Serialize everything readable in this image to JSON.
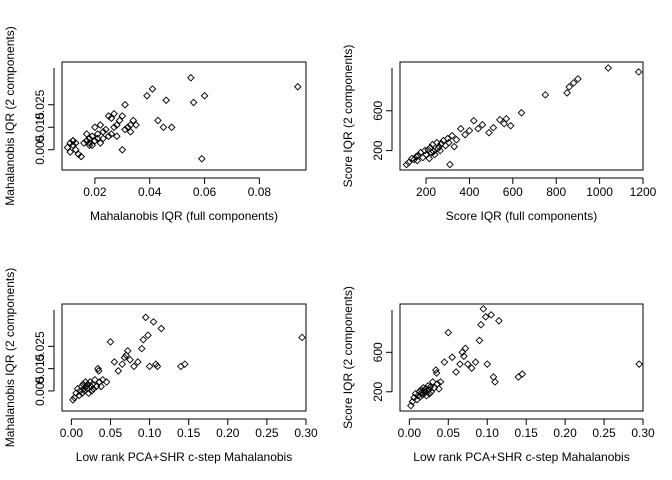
{
  "chart_data": [
    {
      "type": "scatter",
      "xlabel": "Mahalanobis IQR (full components)",
      "ylabel": "Mahalanobis IQR (2 components)",
      "xlim": [
        0.008,
        0.097
      ],
      "ylim": [
        -0.004,
        0.044
      ],
      "xticks": [
        0.02,
        0.04,
        0.06,
        0.08
      ],
      "yticks": [
        0.005,
        0.015,
        0.025
      ],
      "xtick_labels": [
        "0.02",
        "0.04",
        "0.06",
        "0.08"
      ],
      "ytick_labels": [
        "0.005",
        "0.015",
        "0.025"
      ],
      "marker": "open-diamond",
      "x": [
        0.01,
        0.011,
        0.011,
        0.012,
        0.012,
        0.012,
        0.013,
        0.013,
        0.014,
        0.015,
        0.016,
        0.017,
        0.017,
        0.018,
        0.018,
        0.018,
        0.019,
        0.019,
        0.02,
        0.02,
        0.021,
        0.021,
        0.022,
        0.022,
        0.023,
        0.023,
        0.024,
        0.025,
        0.025,
        0.026,
        0.026,
        0.027,
        0.027,
        0.028,
        0.028,
        0.029,
        0.03,
        0.03,
        0.031,
        0.031,
        0.032,
        0.033,
        0.033,
        0.034,
        0.035,
        0.039,
        0.041,
        0.043,
        0.045,
        0.046,
        0.048,
        0.055,
        0.056,
        0.059,
        0.06,
        0.094
      ],
      "y": [
        0.006,
        0.004,
        0.008,
        0.009,
        0.007,
        0.009,
        0.005,
        0.008,
        0.003,
        0.002,
        0.008,
        0.009,
        0.012,
        0.007,
        0.01,
        0.008,
        0.011,
        0.007,
        0.009,
        0.015,
        0.01,
        0.012,
        0.016,
        0.008,
        0.01,
        0.013,
        0.014,
        0.011,
        0.02,
        0.012,
        0.019,
        0.015,
        0.021,
        0.011,
        0.016,
        0.018,
        0.02,
        0.005,
        0.014,
        0.025,
        0.015,
        0.013,
        0.016,
        0.018,
        0.016,
        0.029,
        0.032,
        0.018,
        0.015,
        0.027,
        0.015,
        0.037,
        0.026,
        0.001,
        0.029,
        0.033
      ]
    },
    {
      "type": "scatter",
      "xlabel": "Score IQR (full components)",
      "ylabel": "Score IQR (2 components)",
      "xlim": [
        80,
        1200
      ],
      "ylim": [
        5,
        1090
      ],
      "xticks": [
        200,
        400,
        600,
        800,
        1000,
        1200
      ],
      "yticks": [
        200,
        600
      ],
      "xtick_labels": [
        "200",
        "400",
        "600",
        "800",
        "1000",
        "1200"
      ],
      "ytick_labels": [
        "200",
        "600"
      ],
      "marker": "open-diamond",
      "x": [
        110,
        120,
        135,
        145,
        155,
        160,
        165,
        175,
        185,
        195,
        200,
        210,
        215,
        220,
        225,
        230,
        235,
        240,
        250,
        255,
        260,
        265,
        270,
        280,
        290,
        300,
        305,
        310,
        320,
        330,
        340,
        360,
        380,
        400,
        420,
        440,
        460,
        490,
        510,
        540,
        560,
        570,
        590,
        640,
        750,
        850,
        860,
        880,
        900,
        1040,
        1180
      ],
      "y": [
        60,
        80,
        120,
        110,
        140,
        100,
        150,
        180,
        130,
        200,
        160,
        210,
        120,
        230,
        180,
        260,
        190,
        160,
        280,
        220,
        240,
        200,
        270,
        300,
        250,
        320,
        280,
        60,
        350,
        240,
        310,
        420,
        360,
        400,
        500,
        420,
        460,
        380,
        430,
        510,
        470,
        520,
        450,
        580,
        760,
        780,
        840,
        880,
        920,
        1030,
        990
      ]
    },
    {
      "type": "scatter",
      "xlabel": "Low rank PCA+SHR c-step Mahalanobis",
      "ylabel": "Mahalanobis IQR (2 components)",
      "xlim": [
        -0.012,
        0.3
      ],
      "ylim": [
        -0.004,
        0.044
      ],
      "xticks": [
        0.0,
        0.05,
        0.1,
        0.15,
        0.2,
        0.25,
        0.3
      ],
      "yticks": [
        0.005,
        0.015,
        0.025
      ],
      "xtick_labels": [
        "0.00",
        "0.05",
        "0.10",
        "0.15",
        "0.20",
        "0.25",
        "0.30"
      ],
      "ytick_labels": [
        "0.005",
        "0.015",
        "0.025"
      ],
      "marker": "open-diamond",
      "x": [
        0.002,
        0.004,
        0.006,
        0.008,
        0.01,
        0.011,
        0.013,
        0.014,
        0.015,
        0.016,
        0.017,
        0.018,
        0.019,
        0.02,
        0.021,
        0.022,
        0.024,
        0.025,
        0.026,
        0.027,
        0.028,
        0.03,
        0.032,
        0.034,
        0.035,
        0.036,
        0.038,
        0.04,
        0.045,
        0.05,
        0.055,
        0.06,
        0.065,
        0.068,
        0.07,
        0.072,
        0.075,
        0.08,
        0.085,
        0.09,
        0.092,
        0.095,
        0.098,
        0.1,
        0.105,
        0.108,
        0.11,
        0.115,
        0.14,
        0.145,
        0.295
      ],
      "y": [
        0.001,
        0.002,
        0.004,
        0.006,
        0.003,
        0.005,
        0.007,
        0.004,
        0.008,
        0.006,
        0.005,
        0.009,
        0.007,
        0.006,
        0.008,
        0.004,
        0.009,
        0.007,
        0.005,
        0.008,
        0.006,
        0.01,
        0.007,
        0.015,
        0.014,
        0.009,
        0.007,
        0.01,
        0.009,
        0.027,
        0.018,
        0.014,
        0.017,
        0.02,
        0.021,
        0.023,
        0.019,
        0.016,
        0.018,
        0.024,
        0.028,
        0.038,
        0.03,
        0.016,
        0.036,
        0.017,
        0.016,
        0.033,
        0.016,
        0.017,
        0.029
      ]
    },
    {
      "type": "scatter",
      "xlabel": "Low rank PCA+SHR c-step Mahalanobis",
      "ylabel": "Score IQR (2 components)",
      "xlim": [
        -0.012,
        0.3
      ],
      "ylim": [
        5,
        1090
      ],
      "xticks": [
        0.0,
        0.05,
        0.1,
        0.15,
        0.2,
        0.25,
        0.3
      ],
      "yticks": [
        200,
        600
      ],
      "xtick_labels": [
        "0.00",
        "0.05",
        "0.10",
        "0.15",
        "0.20",
        "0.25",
        "0.30"
      ],
      "ytick_labels": [
        "200",
        "600"
      ],
      "marker": "open-diamond",
      "x": [
        0.002,
        0.004,
        0.006,
        0.008,
        0.01,
        0.011,
        0.013,
        0.014,
        0.015,
        0.016,
        0.017,
        0.018,
        0.019,
        0.02,
        0.021,
        0.022,
        0.024,
        0.025,
        0.026,
        0.027,
        0.028,
        0.03,
        0.032,
        0.034,
        0.035,
        0.036,
        0.038,
        0.04,
        0.045,
        0.05,
        0.055,
        0.06,
        0.065,
        0.068,
        0.07,
        0.072,
        0.075,
        0.08,
        0.085,
        0.09,
        0.092,
        0.095,
        0.098,
        0.1,
        0.105,
        0.108,
        0.11,
        0.115,
        0.14,
        0.145,
        0.295
      ],
      "y": [
        60,
        100,
        140,
        180,
        120,
        160,
        200,
        150,
        220,
        190,
        170,
        240,
        210,
        190,
        230,
        160,
        260,
        220,
        180,
        250,
        200,
        300,
        240,
        420,
        390,
        280,
        230,
        300,
        500,
        800,
        550,
        400,
        480,
        600,
        560,
        640,
        480,
        440,
        500,
        720,
        880,
        1040,
        960,
        480,
        980,
        350,
        300,
        920,
        350,
        380,
        480
      ]
    }
  ]
}
